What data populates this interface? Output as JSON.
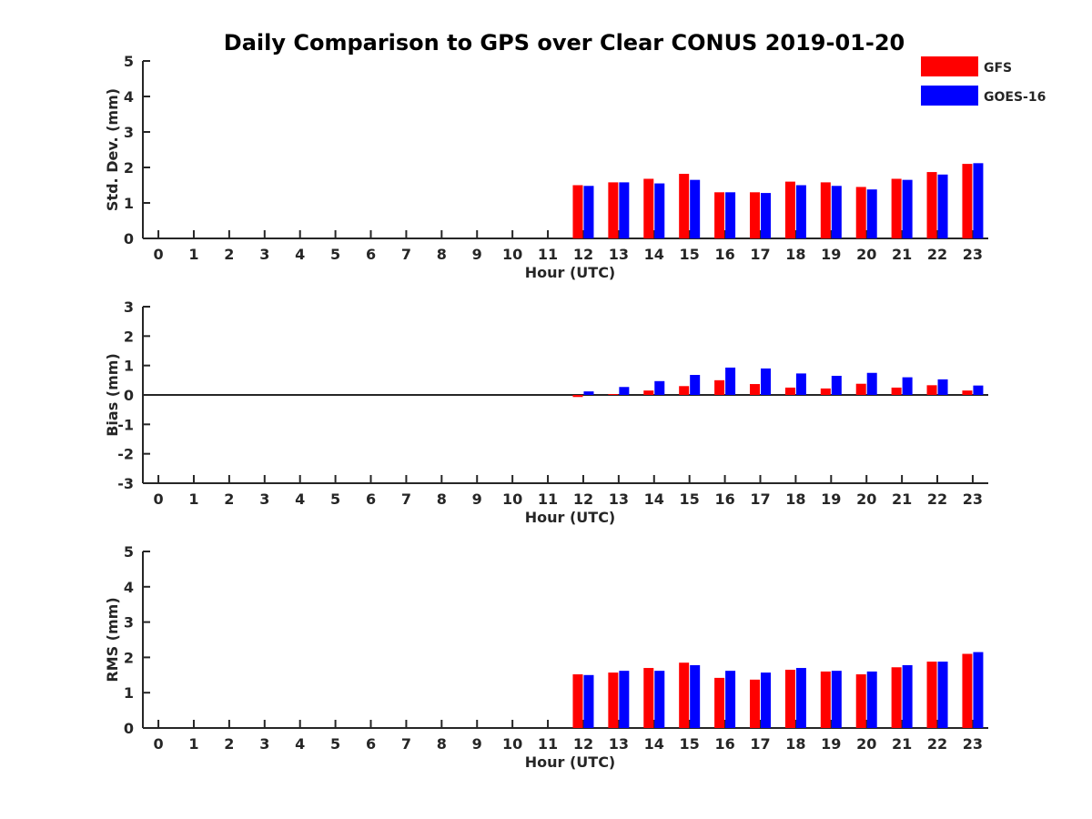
{
  "title": "Daily Comparison to GPS over Clear CONUS 2019-01-20",
  "colors": {
    "gfs": "#ff0000",
    "goes": "#0000ff",
    "axis": "#262626"
  },
  "legend": [
    {
      "label": "GFS",
      "color": "#ff0000"
    },
    {
      "label": "GOES-16",
      "color": "#0000ff"
    }
  ],
  "chart_data": [
    {
      "type": "bar",
      "ylabel": "Std. Dev. (mm)",
      "xlabel": "Hour (UTC)",
      "ylim": [
        0,
        5
      ],
      "yticks": [
        0,
        1,
        2,
        3,
        4,
        5
      ],
      "zero_line": false,
      "categories": [
        0,
        1,
        2,
        3,
        4,
        5,
        6,
        7,
        8,
        9,
        10,
        11,
        12,
        13,
        14,
        15,
        16,
        17,
        18,
        19,
        20,
        21,
        22,
        23
      ],
      "series": [
        {
          "name": "GFS",
          "values": [
            null,
            null,
            null,
            null,
            null,
            null,
            null,
            null,
            null,
            null,
            null,
            null,
            1.5,
            1.58,
            1.68,
            1.82,
            1.3,
            1.3,
            1.6,
            1.58,
            1.45,
            1.68,
            1.87,
            2.1
          ]
        },
        {
          "name": "GOES-16",
          "values": [
            null,
            null,
            null,
            null,
            null,
            null,
            null,
            null,
            null,
            null,
            null,
            null,
            1.48,
            1.58,
            1.55,
            1.65,
            1.3,
            1.28,
            1.5,
            1.48,
            1.38,
            1.65,
            1.8,
            2.12
          ]
        }
      ]
    },
    {
      "type": "bar",
      "ylabel": "Bias (mm)",
      "xlabel": "Hour (UTC)",
      "ylim": [
        -3,
        3
      ],
      "yticks": [
        -3,
        -2,
        -1,
        0,
        1,
        2,
        3
      ],
      "zero_line": true,
      "categories": [
        0,
        1,
        2,
        3,
        4,
        5,
        6,
        7,
        8,
        9,
        10,
        11,
        12,
        13,
        14,
        15,
        16,
        17,
        18,
        19,
        20,
        21,
        22,
        23
      ],
      "series": [
        {
          "name": "GFS",
          "values": [
            null,
            null,
            null,
            null,
            null,
            null,
            null,
            null,
            null,
            null,
            null,
            null,
            -0.07,
            0.03,
            0.15,
            0.3,
            0.5,
            0.37,
            0.25,
            0.22,
            0.38,
            0.25,
            0.33,
            0.15
          ]
        },
        {
          "name": "GOES-16",
          "values": [
            null,
            null,
            null,
            null,
            null,
            null,
            null,
            null,
            null,
            null,
            null,
            null,
            0.12,
            0.27,
            0.47,
            0.68,
            0.93,
            0.9,
            0.73,
            0.65,
            0.75,
            0.6,
            0.53,
            0.32
          ]
        }
      ]
    },
    {
      "type": "bar",
      "ylabel": "RMS (mm)",
      "xlabel": "Hour (UTC)",
      "ylim": [
        0,
        5
      ],
      "yticks": [
        0,
        1,
        2,
        3,
        4,
        5
      ],
      "zero_line": false,
      "categories": [
        0,
        1,
        2,
        3,
        4,
        5,
        6,
        7,
        8,
        9,
        10,
        11,
        12,
        13,
        14,
        15,
        16,
        17,
        18,
        19,
        20,
        21,
        22,
        23
      ],
      "series": [
        {
          "name": "GFS",
          "values": [
            null,
            null,
            null,
            null,
            null,
            null,
            null,
            null,
            null,
            null,
            null,
            null,
            1.52,
            1.57,
            1.7,
            1.85,
            1.42,
            1.37,
            1.65,
            1.6,
            1.52,
            1.72,
            1.88,
            2.1
          ]
        },
        {
          "name": "GOES-16",
          "values": [
            null,
            null,
            null,
            null,
            null,
            null,
            null,
            null,
            null,
            null,
            null,
            null,
            1.5,
            1.62,
            1.62,
            1.78,
            1.62,
            1.57,
            1.7,
            1.62,
            1.6,
            1.78,
            1.88,
            2.15
          ]
        }
      ]
    }
  ]
}
